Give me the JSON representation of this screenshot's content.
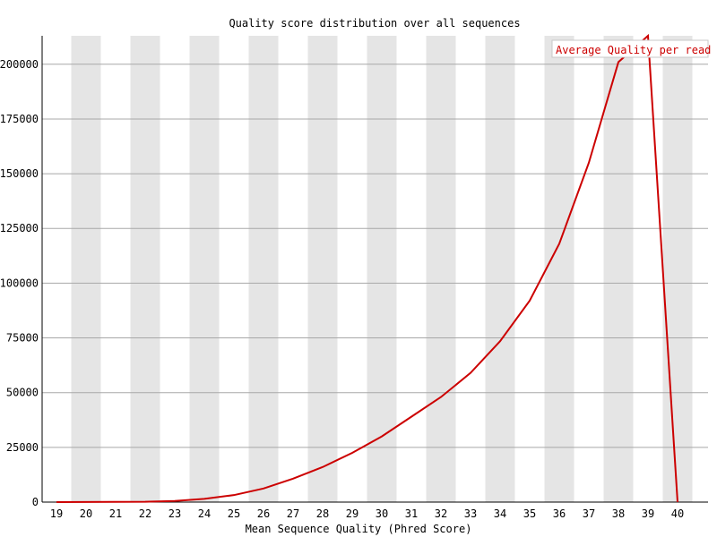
{
  "chart_data": {
    "type": "line",
    "title": "Quality score distribution over all sequences",
    "xlabel": "Mean Sequence Quality (Phred Score)",
    "ylabel": "",
    "x": [
      19,
      20,
      21,
      22,
      23,
      24,
      25,
      26,
      27,
      28,
      29,
      30,
      31,
      32,
      33,
      34,
      35,
      36,
      37,
      38,
      39,
      40
    ],
    "xlim": [
      19,
      40
    ],
    "ylim": [
      0,
      213000
    ],
    "yticks": [
      0,
      25000,
      50000,
      75000,
      100000,
      125000,
      150000,
      175000,
      200000
    ],
    "grid": "horizontal, alternating vertical bands",
    "legend": "top-right",
    "series": [
      {
        "name": "Average Quality per read",
        "color": "#cc0000",
        "values": [
          0,
          50,
          100,
          150,
          500,
          1500,
          3200,
          6200,
          10700,
          16000,
          22500,
          30000,
          39000,
          48000,
          59000,
          73500,
          92000,
          118000,
          155000,
          201000,
          213000,
          0
        ]
      }
    ]
  },
  "colors": {
    "band": "#e5e5e5",
    "gridline": "#a8a8a8",
    "axis": "#000000",
    "line": "#cc0000"
  }
}
